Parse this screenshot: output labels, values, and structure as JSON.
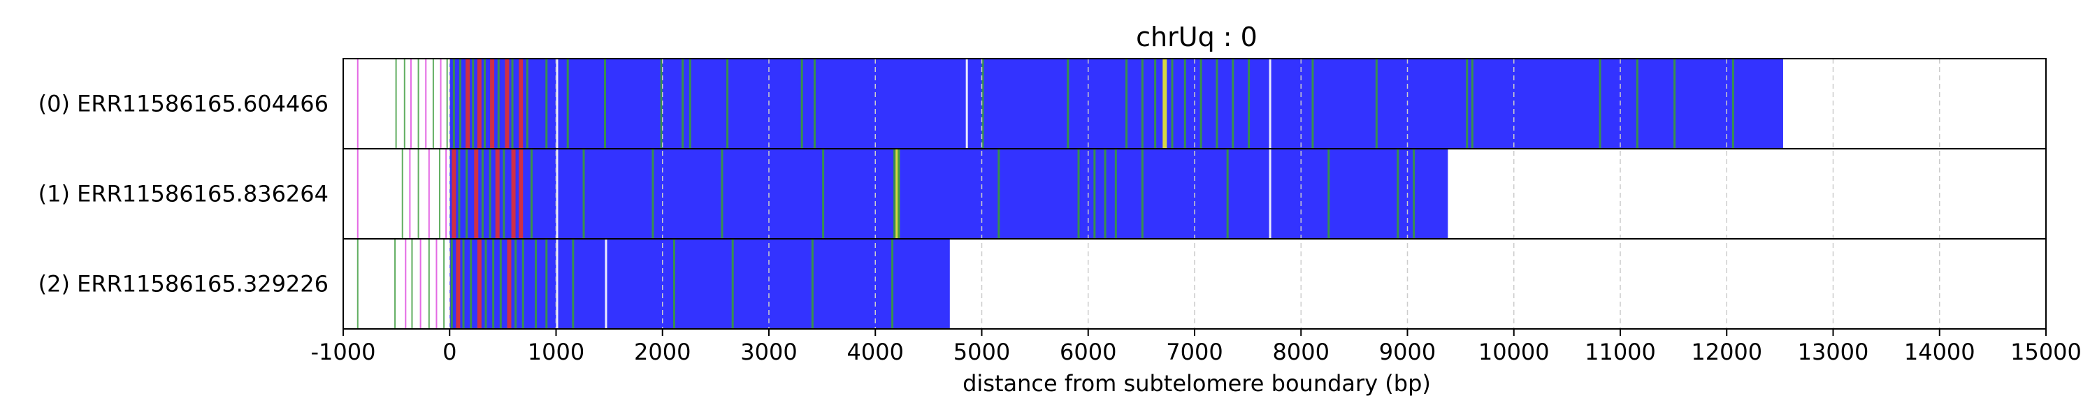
{
  "chart_data": {
    "type": "heatmap",
    "title": "chrUq : 0",
    "xlabel": "distance from subtelomere boundary (bp)",
    "xlim": [
      -1000,
      15000
    ],
    "xticks": [
      -1000,
      0,
      1000,
      2000,
      3000,
      4000,
      5000,
      6000,
      7000,
      8000,
      9000,
      10000,
      11000,
      12000,
      13000,
      14000,
      15000
    ],
    "grid": "vertical dashed",
    "colors": {
      "repeat": "#3333ff",
      "variant_green": "#3a9a3a",
      "variant_red": "#e03030",
      "variant_yellow": "#e8e830",
      "variant_magenta": "#dd44dd",
      "variant_white": "#ffffff",
      "grid": "#cccccc"
    },
    "reads": [
      {
        "label": "(0) ERR11586165.604466",
        "end": 12530,
        "scattered": [
          {
            "x": -870,
            "c": "variant_magenta"
          },
          {
            "x": -510,
            "c": "variant_green"
          },
          {
            "x": -430,
            "c": "variant_green"
          },
          {
            "x": -370,
            "c": "variant_magenta"
          },
          {
            "x": -300,
            "c": "variant_green"
          },
          {
            "x": -230,
            "c": "variant_magenta"
          },
          {
            "x": -160,
            "c": "variant_green"
          },
          {
            "x": -90,
            "c": "variant_magenta"
          },
          {
            "x": -30,
            "c": "variant_green"
          }
        ],
        "bands": [
          {
            "x": 30,
            "c": "variant_green"
          },
          {
            "x": 90,
            "c": "variant_green"
          },
          {
            "x": 150,
            "c": "variant_red"
          },
          {
            "x": 210,
            "c": "variant_green"
          },
          {
            "x": 260,
            "c": "variant_red"
          },
          {
            "x": 320,
            "c": "variant_green"
          },
          {
            "x": 380,
            "c": "variant_red"
          },
          {
            "x": 450,
            "c": "variant_green"
          },
          {
            "x": 520,
            "c": "variant_red"
          },
          {
            "x": 580,
            "c": "variant_green"
          },
          {
            "x": 650,
            "c": "variant_red"
          },
          {
            "x": 720,
            "c": "variant_green"
          },
          {
            "x": 900,
            "c": "variant_green"
          },
          {
            "x": 1000,
            "c": "variant_white"
          },
          {
            "x": 1100,
            "c": "variant_green"
          },
          {
            "x": 1450,
            "c": "variant_green"
          },
          {
            "x": 1980,
            "c": "variant_green"
          },
          {
            "x": 2180,
            "c": "variant_green"
          },
          {
            "x": 2250,
            "c": "variant_green"
          },
          {
            "x": 2600,
            "c": "variant_green"
          },
          {
            "x": 3300,
            "c": "variant_green"
          },
          {
            "x": 3420,
            "c": "variant_green"
          },
          {
            "x": 4850,
            "c": "variant_white"
          },
          {
            "x": 5000,
            "c": "variant_green"
          },
          {
            "x": 5800,
            "c": "variant_green"
          },
          {
            "x": 6350,
            "c": "variant_green"
          },
          {
            "x": 6500,
            "c": "variant_green"
          },
          {
            "x": 6620,
            "c": "variant_green"
          },
          {
            "x": 6700,
            "c": "variant_yellow"
          },
          {
            "x": 6780,
            "c": "variant_green"
          },
          {
            "x": 6900,
            "c": "variant_green"
          },
          {
            "x": 7050,
            "c": "variant_green"
          },
          {
            "x": 7200,
            "c": "variant_green"
          },
          {
            "x": 7350,
            "c": "variant_green"
          },
          {
            "x": 7500,
            "c": "variant_green"
          },
          {
            "x": 7700,
            "c": "variant_white"
          },
          {
            "x": 8100,
            "c": "variant_green"
          },
          {
            "x": 8700,
            "c": "variant_green"
          },
          {
            "x": 9550,
            "c": "variant_green"
          },
          {
            "x": 9600,
            "c": "variant_green"
          },
          {
            "x": 10800,
            "c": "variant_green"
          },
          {
            "x": 11150,
            "c": "variant_green"
          },
          {
            "x": 11500,
            "c": "variant_green"
          },
          {
            "x": 12050,
            "c": "variant_green"
          }
        ]
      },
      {
        "label": "(1) ERR11586165.836264",
        "end": 9380,
        "scattered": [
          {
            "x": -870,
            "c": "variant_magenta"
          },
          {
            "x": -450,
            "c": "variant_green"
          },
          {
            "x": -380,
            "c": "variant_magenta"
          },
          {
            "x": -300,
            "c": "variant_green"
          },
          {
            "x": -200,
            "c": "variant_magenta"
          },
          {
            "x": -100,
            "c": "variant_green"
          },
          {
            "x": -40,
            "c": "variant_magenta"
          }
        ],
        "bands": [
          {
            "x": 20,
            "c": "variant_red"
          },
          {
            "x": 80,
            "c": "variant_green"
          },
          {
            "x": 150,
            "c": "variant_green"
          },
          {
            "x": 230,
            "c": "variant_red"
          },
          {
            "x": 300,
            "c": "variant_green"
          },
          {
            "x": 370,
            "c": "variant_green"
          },
          {
            "x": 430,
            "c": "variant_red"
          },
          {
            "x": 500,
            "c": "variant_green"
          },
          {
            "x": 580,
            "c": "variant_red"
          },
          {
            "x": 650,
            "c": "variant_red"
          },
          {
            "x": 760,
            "c": "variant_green"
          },
          {
            "x": 1000,
            "c": "variant_white"
          },
          {
            "x": 1250,
            "c": "variant_green"
          },
          {
            "x": 1900,
            "c": "variant_green"
          },
          {
            "x": 2550,
            "c": "variant_green"
          },
          {
            "x": 3500,
            "c": "variant_green"
          },
          {
            "x": 4170,
            "c": "variant_green"
          },
          {
            "x": 4190,
            "c": "variant_yellow"
          },
          {
            "x": 4210,
            "c": "variant_green"
          },
          {
            "x": 5150,
            "c": "variant_green"
          },
          {
            "x": 5900,
            "c": "variant_green"
          },
          {
            "x": 6050,
            "c": "variant_green"
          },
          {
            "x": 6150,
            "c": "variant_green"
          },
          {
            "x": 6250,
            "c": "variant_green"
          },
          {
            "x": 6500,
            "c": "variant_green"
          },
          {
            "x": 7300,
            "c": "variant_green"
          },
          {
            "x": 7700,
            "c": "variant_white"
          },
          {
            "x": 8250,
            "c": "variant_green"
          },
          {
            "x": 8900,
            "c": "variant_green"
          },
          {
            "x": 9050,
            "c": "variant_green"
          }
        ]
      },
      {
        "label": "(2) ERR11586165.329226",
        "end": 4700,
        "scattered": [
          {
            "x": -870,
            "c": "variant_green"
          },
          {
            "x": -520,
            "c": "variant_green"
          },
          {
            "x": -420,
            "c": "variant_magenta"
          },
          {
            "x": -360,
            "c": "variant_green"
          },
          {
            "x": -280,
            "c": "variant_magenta"
          },
          {
            "x": -200,
            "c": "variant_green"
          },
          {
            "x": -130,
            "c": "variant_magenta"
          },
          {
            "x": -60,
            "c": "variant_green"
          }
        ],
        "bands": [
          {
            "x": 10,
            "c": "variant_green"
          },
          {
            "x": 60,
            "c": "variant_red"
          },
          {
            "x": 120,
            "c": "variant_green"
          },
          {
            "x": 190,
            "c": "variant_green"
          },
          {
            "x": 260,
            "c": "variant_red"
          },
          {
            "x": 330,
            "c": "variant_green"
          },
          {
            "x": 400,
            "c": "variant_green"
          },
          {
            "x": 470,
            "c": "variant_green"
          },
          {
            "x": 540,
            "c": "variant_red"
          },
          {
            "x": 610,
            "c": "variant_green"
          },
          {
            "x": 680,
            "c": "variant_green"
          },
          {
            "x": 800,
            "c": "variant_green"
          },
          {
            "x": 900,
            "c": "variant_green"
          },
          {
            "x": 1000,
            "c": "variant_white"
          },
          {
            "x": 1150,
            "c": "variant_green"
          },
          {
            "x": 1460,
            "c": "variant_white"
          },
          {
            "x": 2100,
            "c": "variant_green"
          },
          {
            "x": 2650,
            "c": "variant_green"
          },
          {
            "x": 3400,
            "c": "variant_green"
          },
          {
            "x": 4150,
            "c": "variant_green"
          }
        ]
      }
    ]
  }
}
